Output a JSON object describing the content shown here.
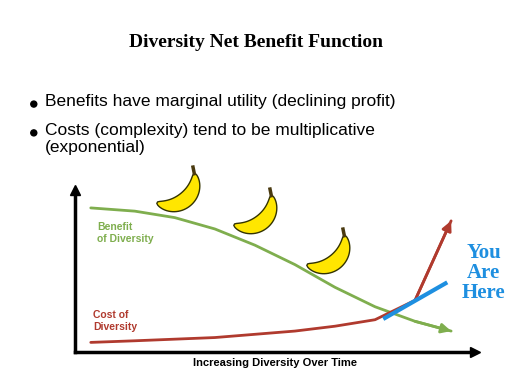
{
  "title": "Diversity Net Benefit Function",
  "bullets": [
    "Benefits have marginal utility (declining profit)",
    "Costs (complexity) tend to be multiplicative\n(exponential)"
  ],
  "chart_data": {
    "type": "line",
    "x_label": "Increasing Diversity Over Time",
    "x": [
      4,
      15,
      25,
      35,
      45,
      55,
      65,
      75,
      85,
      94
    ],
    "xlim": [
      0,
      100
    ],
    "ylim": [
      0,
      100
    ],
    "tick_labels": false,
    "series": [
      {
        "name": "Benefit\nof Diversity",
        "color": "#7fae4e",
        "values": [
          89,
          87,
          83,
          76,
          66,
          54,
          40,
          28,
          19,
          13
        ]
      },
      {
        "name": "Cost of\nDiversity",
        "color": "#b03a2e",
        "values": [
          6,
          7,
          8,
          9,
          11,
          13,
          16,
          20,
          32,
          81
        ]
      }
    ],
    "annotation": "You\nAre\nHere"
  }
}
